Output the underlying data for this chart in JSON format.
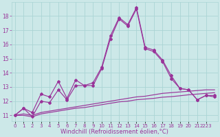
{
  "bg_color": "#cce8e8",
  "grid_color": "#aad4d4",
  "line_color": "#993399",
  "x": [
    0,
    1,
    2,
    3,
    4,
    5,
    6,
    7,
    8,
    9,
    10,
    11,
    12,
    13,
    14,
    15,
    16,
    17,
    18,
    19,
    20,
    21,
    22,
    23
  ],
  "line1": [
    11.0,
    11.5,
    11.2,
    12.5,
    12.3,
    13.4,
    12.2,
    13.5,
    13.1,
    13.3,
    14.4,
    16.6,
    17.9,
    17.4,
    18.6,
    15.8,
    15.6,
    14.9,
    13.8,
    12.9,
    12.8,
    12.1,
    12.4,
    12.4
  ],
  "line2": [
    11.0,
    11.5,
    10.9,
    12.0,
    11.9,
    12.8,
    12.1,
    13.1,
    13.1,
    13.1,
    14.3,
    16.4,
    17.8,
    17.3,
    18.5,
    15.7,
    15.5,
    14.8,
    13.6,
    12.9,
    12.8,
    12.1,
    12.4,
    12.3
  ],
  "line3": [
    11.0,
    11.1,
    11.0,
    11.2,
    11.3,
    11.4,
    11.5,
    11.6,
    11.7,
    11.8,
    11.9,
    12.0,
    12.1,
    12.2,
    12.3,
    12.35,
    12.45,
    12.55,
    12.6,
    12.65,
    12.7,
    12.75,
    12.8,
    12.8
  ],
  "line4": [
    11.0,
    11.0,
    10.9,
    11.1,
    11.2,
    11.3,
    11.4,
    11.5,
    11.55,
    11.65,
    11.75,
    11.85,
    11.95,
    12.0,
    12.1,
    12.15,
    12.2,
    12.28,
    12.32,
    12.38,
    12.45,
    12.5,
    12.55,
    12.6
  ],
  "ylim": [
    10.6,
    19.0
  ],
  "xlim": [
    -0.4,
    23.4
  ],
  "yticks": [
    11,
    12,
    13,
    14,
    15,
    16,
    17,
    18
  ],
  "xlabel": "Windchill (Refroidissement éolien,°C)",
  "xtick_labels": [
    "0",
    "1",
    "2",
    "3",
    "4",
    "5",
    "6",
    "7",
    "8",
    "9",
    "10",
    "11",
    "12",
    "13",
    "14",
    "15",
    "16",
    "17",
    "18",
    "19",
    "20",
    "21",
    "2223"
  ],
  "xtick_pos": [
    0,
    1,
    2,
    3,
    4,
    5,
    6,
    7,
    8,
    9,
    10,
    11,
    12,
    13,
    14,
    15,
    16,
    17,
    18,
    19,
    20,
    21,
    22
  ],
  "markersize": 2.0,
  "linewidth": 0.85,
  "tick_fontsize": 5.5,
  "xlabel_fontsize": 6.0
}
